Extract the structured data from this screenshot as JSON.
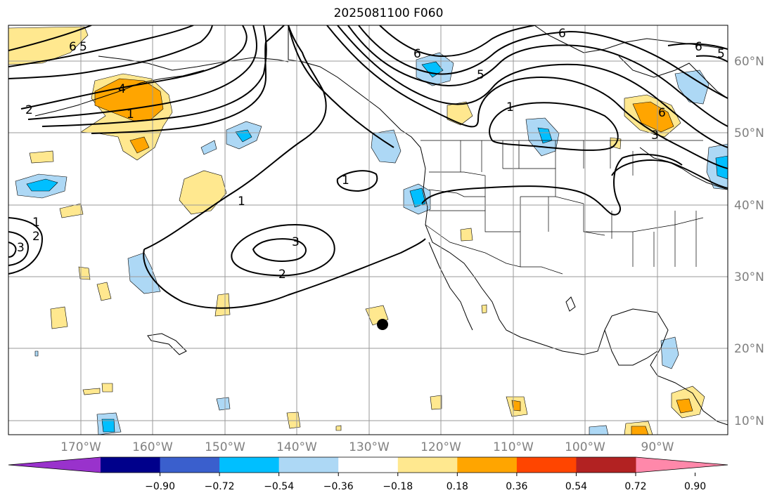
{
  "title": "2025081100 F060",
  "latitude_labels": [
    "60°N",
    "50°N",
    "40°N",
    "30°N",
    "20°N",
    "10°N"
  ],
  "longitude_labels": [
    "170°W",
    "160°W",
    "150°W",
    "140°W",
    "130°W",
    "120°W",
    "110°W",
    "100°W",
    "90°W"
  ],
  "colorbar": {
    "tick_labels": [
      "−0.90",
      "−0.72",
      "−0.54",
      "−0.36",
      "−0.18",
      "0.18",
      "0.36",
      "0.54",
      "0.72",
      "0.90"
    ],
    "colors": [
      "#9932CC",
      "#00008B",
      "#3A5FCD",
      "#00BFFF",
      "#ADD8F5",
      "#FFFFFF",
      "#FFE88F",
      "#FFA500",
      "#FF4500",
      "#B22222",
      "#FF88AA"
    ]
  },
  "contour_labels": {
    "c6_left": "6",
    "c5_left": "5",
    "c4": "4",
    "c2_left": "2",
    "c1_left": "1",
    "c1_mid": "1",
    "c3_mid": "3",
    "c2_mid": "2",
    "c1_coast": "1",
    "c6_top": "6",
    "c6_top2": "6",
    "c5_top": "5",
    "c1_top": "1",
    "c6_right": "6",
    "c3_right": "3",
    "c6_far": "6",
    "c5_far": "5",
    "c1_w": "1",
    "c2_w": "2",
    "c3_w": "3"
  },
  "storm_marker": "tropical-cyclone-position"
}
